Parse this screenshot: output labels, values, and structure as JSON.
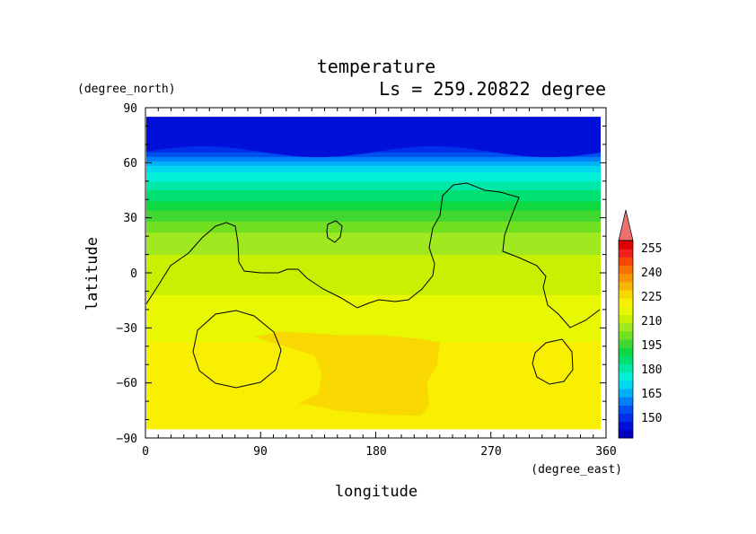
{
  "chart_data": {
    "type": "heatmap",
    "title": "temperature",
    "subtitle": "Ls = 259.20822 degree",
    "xlabel": "longitude",
    "ylabel": "latitude",
    "xunit": "(degree_east)",
    "yunit": "(degree_north)",
    "xlim": [
      0,
      360
    ],
    "ylim": [
      -90,
      90
    ],
    "xticks": [
      "0",
      "90",
      "180",
      "270",
      "360"
    ],
    "yticks": [
      "90",
      "60",
      "30",
      "0",
      "−30",
      "−60",
      "−90"
    ],
    "colorbar": {
      "labels": [
        "255",
        "240",
        "225",
        "210",
        "195",
        "180",
        "165",
        "150"
      ],
      "levels": [
        145,
        150,
        155,
        160,
        165,
        170,
        175,
        180,
        185,
        190,
        195,
        200,
        205,
        210,
        215,
        220,
        225,
        230,
        235,
        240,
        245,
        250,
        255,
        260
      ],
      "colors": [
        "#0000c0",
        "#0010d8",
        "#0030e8",
        "#0050f0",
        "#0080f8",
        "#00b0f8",
        "#00d8f0",
        "#00f0d8",
        "#00e8a8",
        "#00e070",
        "#10d840",
        "#40d830",
        "#70e020",
        "#a0e820",
        "#c8f000",
        "#e8f800",
        "#f8f000",
        "#f8d800",
        "#f8b400",
        "#f89400",
        "#f87000",
        "#f84800",
        "#f02020",
        "#e00000"
      ],
      "extend_top_color": "#f07070"
    },
    "zonal_profile": [
      {
        "lat": 85,
        "value": 147
      },
      {
        "lat": 75,
        "value": 150
      },
      {
        "lat": 67,
        "value": 158
      },
      {
        "lat": 62,
        "value": 168
      },
      {
        "lat": 57,
        "value": 178
      },
      {
        "lat": 52,
        "value": 183
      },
      {
        "lat": 45,
        "value": 190
      },
      {
        "lat": 38,
        "value": 196
      },
      {
        "lat": 30,
        "value": 203
      },
      {
        "lat": 22,
        "value": 210
      },
      {
        "lat": 10,
        "value": 215
      },
      {
        "lat": -5,
        "value": 219
      },
      {
        "lat": -20,
        "value": 221
      },
      {
        "lat": -30,
        "value": 224
      },
      {
        "lat": -45,
        "value": 226
      },
      {
        "lat": -60,
        "value": 226
      },
      {
        "lat": -70,
        "value": 228
      },
      {
        "lat": -85,
        "value": 229
      }
    ],
    "warm_region_value": 232,
    "grid": false,
    "colorbar_position": "right"
  }
}
